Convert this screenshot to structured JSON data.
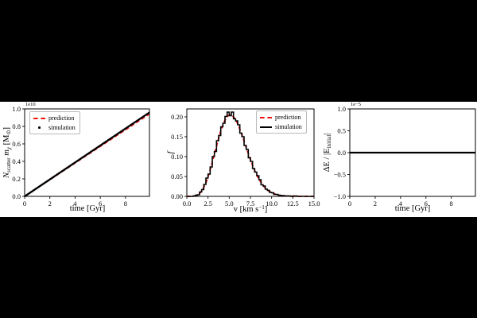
{
  "figure": {
    "background_color": "#000000",
    "panel_color": "#ffffff",
    "prediction_color": "#f50f0f",
    "simulation_color": "#000000"
  },
  "chart_data": [
    {
      "type": "line",
      "xlabel": "time [Gyr]",
      "ylabel_rich": [
        [
          "N",
          "i"
        ],
        [
          "scatter",
          "sub"
        ],
        [
          " ",
          "n"
        ],
        [
          "m",
          "i"
        ],
        [
          "χ",
          "isub"
        ],
        [
          " [M",
          "n"
        ],
        [
          "⊙",
          "sub"
        ],
        [
          "]",
          "n"
        ]
      ],
      "offset_text": "1e10",
      "xlim": [
        0,
        9.9
      ],
      "ylim": [
        0,
        1.0
      ],
      "xticks": [
        0,
        2,
        4,
        6,
        8
      ],
      "xtick_labels": [
        "0",
        "2",
        "4",
        "6",
        "8"
      ],
      "yticks": [
        0.0,
        0.2,
        0.4,
        0.6,
        0.8,
        1.0
      ],
      "ytick_labels": [
        "0.0",
        "0.2",
        "0.4",
        "0.6",
        "0.8",
        "1.0"
      ],
      "legend": {
        "position": "upper-left",
        "entries": [
          {
            "label": "prediction",
            "color": "#f50f0f",
            "marker": "dashed-line"
          },
          {
            "label": "simulation",
            "color": "#000000",
            "marker": "dot"
          }
        ]
      },
      "series": [
        {
          "name": "prediction",
          "style": "dashed",
          "color": "#f50f0f",
          "linewidth": 1.8,
          "x": [
            0,
            9.9
          ],
          "y": [
            0,
            0.943
          ]
        },
        {
          "name": "simulation",
          "style": "solid",
          "color": "#000000",
          "linewidth": 2.3,
          "x": [
            0,
            9.9
          ],
          "y": [
            0,
            0.96
          ]
        }
      ]
    },
    {
      "type": "histogram",
      "xlabel_rich": [
        [
          "v [km s",
          "n"
        ],
        [
          "−1",
          "sup"
        ],
        [
          "]",
          "n"
        ]
      ],
      "ylabel_rich": [
        [
          "f",
          "i"
        ]
      ],
      "xlim": [
        0,
        15
      ],
      "ylim": [
        0,
        0.22
      ],
      "xticks": [
        0,
        2.5,
        5,
        7.5,
        10,
        12.5,
        15
      ],
      "xtick_labels": [
        "0.0",
        "2.5",
        "5.0",
        "7.5",
        "10.0",
        "12.5",
        "15.0"
      ],
      "yticks": [
        0.0,
        0.05,
        0.1,
        0.15,
        0.2
      ],
      "ytick_labels": [
        "0.00",
        "0.05",
        "0.10",
        "0.15",
        "0.20"
      ],
      "bin_start": 0,
      "bin_width": 0.25,
      "prediction": [
        0.0,
        0.0,
        0.0,
        0.001,
        0.002,
        0.005,
        0.01,
        0.018,
        0.028,
        0.041,
        0.057,
        0.076,
        0.096,
        0.116,
        0.136,
        0.156,
        0.172,
        0.186,
        0.197,
        0.203,
        0.205,
        0.203,
        0.197,
        0.188,
        0.176,
        0.162,
        0.147,
        0.131,
        0.115,
        0.1,
        0.085,
        0.072,
        0.059,
        0.048,
        0.039,
        0.031,
        0.024,
        0.019,
        0.014,
        0.011,
        0.008,
        0.006,
        0.004,
        0.003,
        0.002,
        0.002,
        0.001,
        0.001,
        0.001,
        0.0,
        0.0,
        0.0,
        0.0,
        0.0,
        0.0,
        0.0,
        0.0,
        0.0,
        0.0,
        0.0
      ],
      "simulation": [
        0.0,
        0.0,
        0.0,
        0.001,
        0.003,
        0.004,
        0.011,
        0.017,
        0.03,
        0.046,
        0.056,
        0.074,
        0.1,
        0.113,
        0.14,
        0.153,
        0.175,
        0.184,
        0.201,
        0.212,
        0.203,
        0.212,
        0.195,
        0.19,
        0.18,
        0.159,
        0.15,
        0.128,
        0.118,
        0.097,
        0.088,
        0.07,
        0.061,
        0.052,
        0.042,
        0.029,
        0.026,
        0.018,
        0.015,
        0.01,
        0.009,
        0.005,
        0.005,
        0.003,
        0.002,
        0.002,
        0.001,
        0.001,
        0.001,
        0.0,
        0.001,
        0.001,
        0.0,
        0.0,
        0.0,
        0.0,
        0.0,
        0.0,
        0.0,
        0.0
      ],
      "legend": {
        "position": "upper-right",
        "entries": [
          {
            "label": "prediction",
            "color": "#f50f0f",
            "marker": "dashed-line"
          },
          {
            "label": "simulation",
            "color": "#000000",
            "marker": "solid-line"
          }
        ]
      }
    },
    {
      "type": "line",
      "xlabel": "time [Gyr]",
      "ylabel_rich": [
        [
          "ΔE / |E",
          "n"
        ],
        [
          "initial",
          "sub"
        ],
        [
          "|",
          "n"
        ]
      ],
      "offset_text": "1e−5",
      "xlim": [
        0,
        9.9
      ],
      "ylim": [
        -1.0,
        1.0
      ],
      "xticks": [
        0,
        2,
        4,
        6,
        8
      ],
      "xtick_labels": [
        "0",
        "2",
        "4",
        "6",
        "8"
      ],
      "yticks": [
        -1.0,
        -0.5,
        0.0,
        0.5,
        1.0
      ],
      "ytick_labels": [
        "−1.0",
        "−0.5",
        "0.0",
        "0.5",
        "1.0"
      ],
      "series": [
        {
          "name": "energy-error",
          "style": "solid",
          "color": "#000000",
          "linewidth": 2.2,
          "x": [
            0,
            9.9
          ],
          "y": [
            0,
            0
          ]
        }
      ]
    }
  ]
}
